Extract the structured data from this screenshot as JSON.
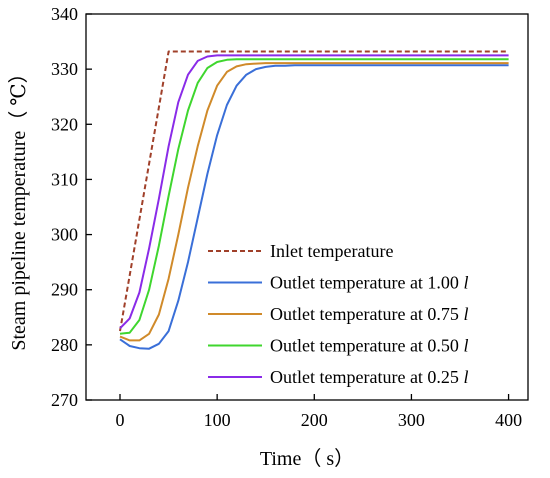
{
  "chart_data": {
    "type": "line",
    "xlabel": "Time（ s）",
    "ylabel": "Steam pipeline temperature（ ℃）",
    "xlim": [
      -35,
      420
    ],
    "ylim": [
      270,
      340
    ],
    "xticks": [
      0,
      100,
      200,
      300,
      400
    ],
    "yticks": [
      270,
      280,
      290,
      300,
      310,
      320,
      330,
      340
    ],
    "grid": false,
    "legend_position": "bottom-right",
    "series": [
      {
        "name": "Inlet temperature",
        "name_suffix": "",
        "color": "#A0402A",
        "dash": "dashed",
        "x": [
          0,
          50,
          400
        ],
        "y": [
          282.5,
          333.2,
          333.2
        ]
      },
      {
        "name": "Outlet temperature at 1.00 ",
        "name_suffix": "l",
        "color": "#3A6FD8",
        "dash": "solid",
        "x": [
          0,
          10,
          20,
          30,
          40,
          50,
          60,
          70,
          80,
          90,
          100,
          110,
          120,
          130,
          140,
          150,
          160,
          170,
          180,
          200,
          240,
          300,
          400
        ],
        "y": [
          281.0,
          279.8,
          279.4,
          279.3,
          280.2,
          282.5,
          288.0,
          295.0,
          303.0,
          311.0,
          318.0,
          323.5,
          327.0,
          329.0,
          330.0,
          330.4,
          330.6,
          330.6,
          330.7,
          330.7,
          330.7,
          330.7,
          330.7
        ]
      },
      {
        "name": "Outlet temperature at 0.75 ",
        "name_suffix": "l",
        "color": "#D08A2A",
        "dash": "solid",
        "x": [
          0,
          10,
          20,
          30,
          40,
          50,
          60,
          70,
          80,
          90,
          100,
          110,
          120,
          130,
          140,
          150,
          160,
          200,
          300,
          400
        ],
        "y": [
          281.5,
          280.8,
          280.8,
          282.0,
          285.5,
          292.0,
          300.0,
          308.5,
          316.0,
          322.5,
          327.0,
          329.5,
          330.5,
          330.9,
          331.0,
          331.1,
          331.1,
          331.1,
          331.1,
          331.1
        ]
      },
      {
        "name": "Outlet temperature at 0.50 ",
        "name_suffix": "l",
        "color": "#3FD62E",
        "dash": "solid",
        "x": [
          0,
          10,
          20,
          30,
          40,
          50,
          60,
          70,
          80,
          90,
          100,
          110,
          120,
          130,
          150,
          200,
          300,
          400
        ],
        "y": [
          282.0,
          282.2,
          284.5,
          290.0,
          298.0,
          307.0,
          315.5,
          322.5,
          327.5,
          330.2,
          331.3,
          331.7,
          331.8,
          331.8,
          331.8,
          331.8,
          331.8,
          331.8
        ]
      },
      {
        "name": "Outlet temperature at 0.25 ",
        "name_suffix": "l",
        "color": "#8A2BE8",
        "dash": "solid",
        "x": [
          0,
          10,
          20,
          30,
          40,
          50,
          60,
          70,
          80,
          90,
          100,
          110,
          120,
          150,
          200,
          300,
          400
        ],
        "y": [
          283.0,
          284.8,
          289.5,
          297.5,
          306.5,
          316.0,
          324.0,
          329.0,
          331.5,
          332.3,
          332.5,
          332.5,
          332.5,
          332.5,
          332.5,
          332.5,
          332.5
        ]
      }
    ]
  }
}
